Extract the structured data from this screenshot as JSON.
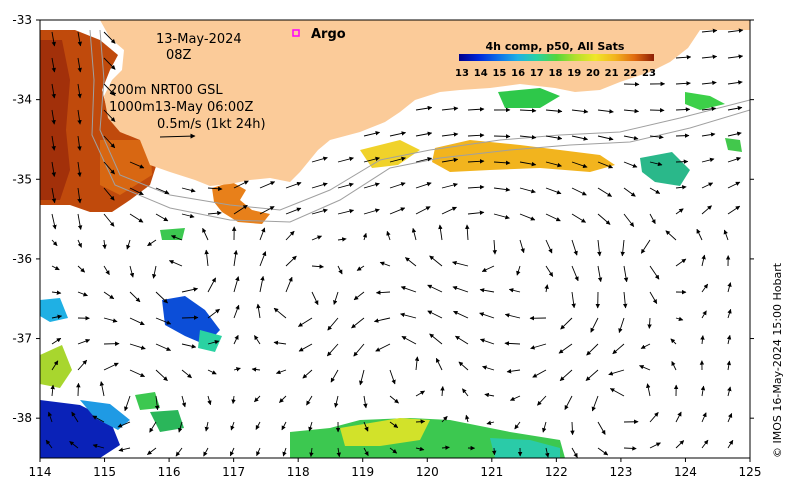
{
  "map": {
    "date": "13-May-2024",
    "time": "08Z",
    "line1": "200m  NRT00 GSL",
    "line2": "1000m13-May 06:00Z",
    "scale_label": "0.5m/s (1kt 24h)",
    "argo_label": "Argo",
    "credit": "© IMOS 16-May-2024 15:00 Hobart",
    "x_ticks": [
      "114",
      "115",
      "116",
      "117",
      "118",
      "119",
      "120",
      "121",
      "122",
      "123",
      "124",
      "125"
    ],
    "y_ticks": [
      "-33",
      "-34",
      "-35",
      "-36",
      "-37",
      "-38"
    ],
    "lon_range": [
      114,
      125
    ],
    "lat_range": [
      -38.5,
      -33
    ],
    "colors": {
      "land": "#fbcb99",
      "arrow": "#000000",
      "argo": "#ff00ff",
      "contour": "#a0a0a0"
    }
  },
  "legend": {
    "title": "4h comp, p50, All Sats",
    "values": [
      "13",
      "14",
      "15",
      "16",
      "17",
      "18",
      "19",
      "20",
      "21",
      "22",
      "23"
    ],
    "colormap": [
      "#00008b",
      "#0026d9",
      "#0c6ee8",
      "#1fb0e4",
      "#2ad2a2",
      "#54d63c",
      "#b5e02c",
      "#f0e62a",
      "#f2b41e",
      "#e06a0f",
      "#b83a08",
      "#8c1f06"
    ]
  }
}
